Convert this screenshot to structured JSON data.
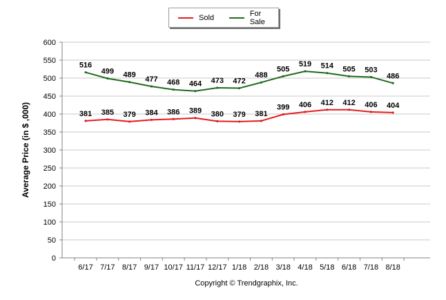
{
  "legend": {
    "sold": "Sold",
    "for_sale": "For Sale"
  },
  "colors": {
    "sold": "#e31a1c",
    "for_sale": "#1e6b1e",
    "grid": "#c8c8c8",
    "axis": "#808080"
  },
  "footer": {
    "copyright": "Copyright © Trendgraphix, Inc."
  },
  "chart_data": {
    "type": "line",
    "title": "",
    "xlabel": "",
    "ylabel": "Average Price (in $ ,000)",
    "ylim": [
      0,
      600
    ],
    "yticks": [
      0,
      50,
      100,
      150,
      200,
      250,
      300,
      350,
      400,
      450,
      500,
      550,
      600
    ],
    "grid": true,
    "legend_position": "top-center",
    "categories": [
      "6/17",
      "7/17",
      "8/17",
      "9/17",
      "10/17",
      "11/17",
      "12/17",
      "1/18",
      "2/18",
      "3/18",
      "4/18",
      "5/18",
      "6/18",
      "7/18",
      "8/18"
    ],
    "series": [
      {
        "name": "Sold",
        "color": "#e31a1c",
        "values": [
          381,
          385,
          379,
          384,
          386,
          389,
          380,
          379,
          381,
          399,
          406,
          412,
          412,
          406,
          404
        ]
      },
      {
        "name": "For Sale",
        "color": "#1e6b1e",
        "values": [
          516,
          499,
          489,
          477,
          468,
          464,
          473,
          472,
          488,
          505,
          519,
          514,
          505,
          503,
          486
        ]
      }
    ]
  }
}
